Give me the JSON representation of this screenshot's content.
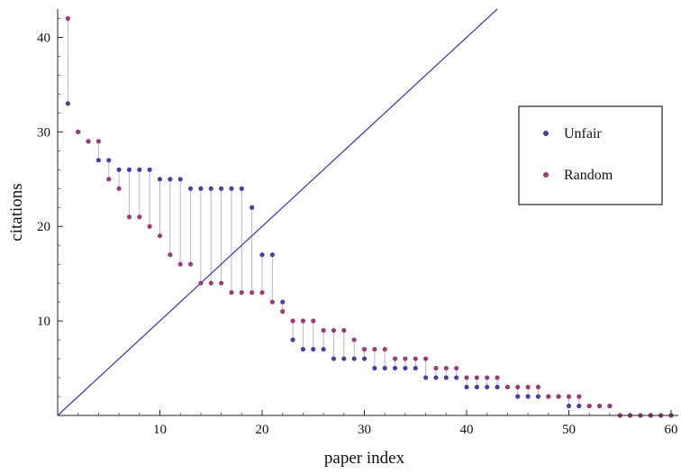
{
  "chart_data": {
    "type": "scatter",
    "xlabel": "paper index",
    "ylabel": "citations",
    "xlim": [
      0,
      60
    ],
    "ylim": [
      0,
      43
    ],
    "x_ticks": [
      10,
      20,
      30,
      40,
      50,
      60
    ],
    "y_ticks": [
      10,
      20,
      30,
      40
    ],
    "grid": false,
    "legend_position": "right",
    "reference_line": {
      "from": [
        0,
        0
      ],
      "to": [
        43,
        43
      ],
      "color": "#4a3fa0"
    },
    "drop_lines": {
      "color": "#b8b4de"
    },
    "series": [
      {
        "name": "Unfair",
        "color": "#4a3fa0",
        "x": [
          1,
          2,
          3,
          4,
          5,
          6,
          7,
          8,
          9,
          10,
          11,
          12,
          13,
          14,
          15,
          16,
          17,
          18,
          19,
          20,
          21,
          22,
          23,
          24,
          25,
          26,
          27,
          28,
          29,
          30,
          31,
          32,
          33,
          34,
          35,
          36,
          37,
          38,
          39,
          40,
          41,
          42,
          43,
          44,
          45,
          46,
          47,
          48,
          49,
          50,
          51,
          52,
          53,
          54,
          55,
          56,
          57,
          58,
          59,
          60
        ],
        "y": [
          33,
          30,
          29,
          27,
          27,
          26,
          26,
          26,
          26,
          25,
          25,
          25,
          24,
          24,
          24,
          24,
          24,
          24,
          22,
          17,
          17,
          12,
          8,
          7,
          7,
          7,
          6,
          6,
          6,
          6,
          5,
          5,
          5,
          5,
          5,
          4,
          4,
          4,
          4,
          3,
          3,
          3,
          3,
          3,
          2,
          2,
          2,
          2,
          2,
          1,
          1,
          1,
          1,
          1,
          0,
          0,
          0,
          0,
          0,
          0
        ]
      },
      {
        "name": "Random",
        "color": "#9b3d74",
        "x": [
          1,
          2,
          3,
          4,
          5,
          6,
          7,
          8,
          9,
          10,
          11,
          12,
          13,
          14,
          15,
          16,
          17,
          18,
          19,
          20,
          21,
          22,
          23,
          24,
          25,
          26,
          27,
          28,
          29,
          30,
          31,
          32,
          33,
          34,
          35,
          36,
          37,
          38,
          39,
          40,
          41,
          42,
          43,
          44,
          45,
          46,
          47,
          48,
          49,
          50,
          51,
          52,
          53,
          54,
          55,
          56,
          57,
          58,
          59,
          60
        ],
        "y": [
          42,
          30,
          29,
          29,
          25,
          24,
          21,
          21,
          20,
          19,
          17,
          16,
          16,
          14,
          14,
          14,
          13,
          13,
          13,
          13,
          12,
          11,
          10,
          10,
          10,
          9,
          9,
          9,
          8,
          7,
          7,
          7,
          6,
          6,
          6,
          6,
          5,
          5,
          5,
          4,
          4,
          4,
          4,
          3,
          3,
          3,
          3,
          2,
          2,
          2,
          2,
          1,
          1,
          1,
          0,
          0,
          0,
          0,
          0,
          0
        ]
      }
    ]
  }
}
